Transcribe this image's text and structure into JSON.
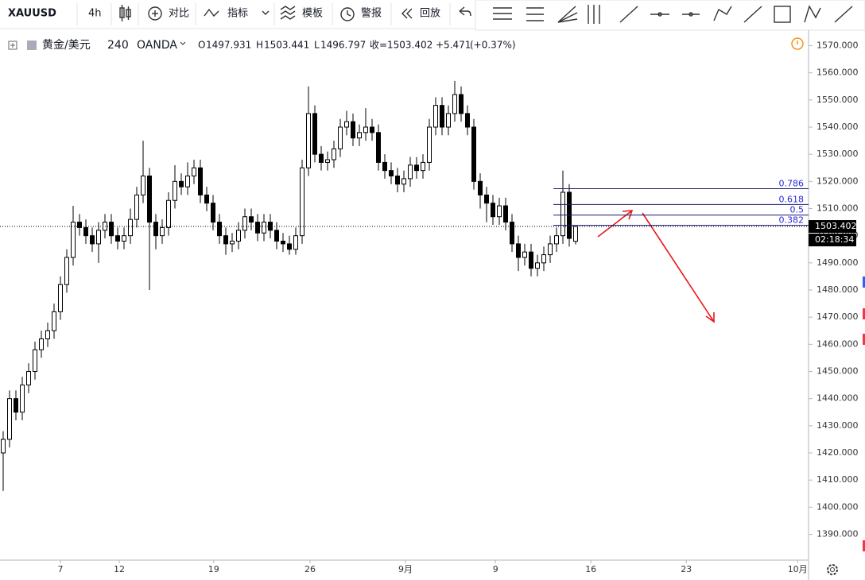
{
  "toolbar": {
    "symbol": "XAUUSD",
    "interval": "4h",
    "compare": "对比",
    "indicators": "指标",
    "templates": "模板",
    "alerts": "警报",
    "replay": "回放"
  },
  "header": {
    "name": "黄金/美元",
    "interval": "240",
    "source": "OANDA",
    "o_label": "O",
    "h_label": "H",
    "l_label": "L",
    "c_label": "收=",
    "change": "+5.471",
    "change_pct": "(+0.37%)",
    "countdown": "02:18:34"
  },
  "chart_data": {
    "type": "candlestick",
    "open": [
      1420,
      1425,
      1440,
      1435,
      1445,
      1450,
      1458,
      1462,
      1465,
      1472,
      1482,
      1492,
      1505,
      1503,
      1500,
      1497,
      1502,
      1505,
      1500,
      1498,
      1500,
      1506,
      1515,
      1522,
      1505,
      1500,
      1503,
      1513,
      1520,
      1518,
      1522,
      1525,
      1515,
      1512,
      1505,
      1500,
      1497,
      1498,
      1502,
      1507,
      1505,
      1501,
      1505,
      1502,
      1498,
      1497,
      1495,
      1500,
      1525,
      1545,
      1530,
      1527,
      1528,
      1532,
      1540,
      1542,
      1536,
      1538,
      1540,
      1538,
      1527,
      1524,
      1522,
      1519,
      1521,
      1526,
      1524,
      1527,
      1540,
      1548,
      1540,
      1545,
      1552,
      1545,
      1540,
      1520,
      1515,
      1512,
      1507,
      1511,
      1505,
      1497,
      1492,
      1494,
      1488,
      1490,
      1493,
      1497,
      1500,
      1516,
      1497.931
    ],
    "high": [
      1428,
      1443,
      1443,
      1448,
      1453,
      1461,
      1465,
      1468,
      1475,
      1485,
      1495,
      1511,
      1508,
      1506,
      1503,
      1505,
      1508,
      1508,
      1503,
      1503,
      1510,
      1518,
      1535,
      1525,
      1508,
      1506,
      1516,
      1526,
      1523,
      1527,
      1528,
      1528,
      1518,
      1515,
      1508,
      1503,
      1501,
      1505,
      1510,
      1510,
      1508,
      1508,
      1508,
      1505,
      1501,
      1500,
      1503,
      1528,
      1555,
      1548,
      1533,
      1531,
      1535,
      1543,
      1546,
      1545,
      1541,
      1547,
      1543,
      1541,
      1530,
      1527,
      1525,
      1524,
      1529,
      1529,
      1530,
      1543,
      1551,
      1551,
      1548,
      1557,
      1555,
      1548,
      1543,
      1523,
      1518,
      1515,
      1514,
      1514,
      1508,
      1500,
      1497,
      1497,
      1493,
      1496,
      1500,
      1503,
      1524,
      1519,
      1503.441
    ],
    "low": [
      1406,
      1422,
      1432,
      1432,
      1442,
      1447,
      1455,
      1459,
      1462,
      1469,
      1479,
      1489,
      1500,
      1497,
      1494,
      1490,
      1499,
      1497,
      1495,
      1495,
      1497,
      1503,
      1512,
      1480,
      1495,
      1497,
      1500,
      1510,
      1515,
      1515,
      1519,
      1512,
      1509,
      1502,
      1497,
      1493,
      1494,
      1495,
      1499,
      1502,
      1498,
      1498,
      1499,
      1495,
      1494,
      1493,
      1493,
      1497,
      1522,
      1527,
      1524,
      1524,
      1525,
      1529,
      1537,
      1533,
      1533,
      1535,
      1535,
      1524,
      1521,
      1519,
      1516,
      1516,
      1518,
      1521,
      1521,
      1524,
      1537,
      1537,
      1537,
      1542,
      1542,
      1537,
      1517,
      1510,
      1505,
      1504,
      1504,
      1502,
      1494,
      1487,
      1489,
      1485,
      1485,
      1487,
      1490,
      1494,
      1497,
      1496,
      1496.797
    ],
    "close": [
      1425,
      1440,
      1435,
      1445,
      1450,
      1458,
      1462,
      1465,
      1472,
      1482,
      1492,
      1505,
      1503,
      1500,
      1497,
      1502,
      1505,
      1500,
      1498,
      1500,
      1506,
      1515,
      1522,
      1505,
      1500,
      1503,
      1513,
      1520,
      1518,
      1522,
      1525,
      1515,
      1512,
      1505,
      1500,
      1497,
      1498,
      1502,
      1507,
      1505,
      1501,
      1505,
      1502,
      1498,
      1497,
      1495,
      1500,
      1525,
      1545,
      1530,
      1527,
      1528,
      1532,
      1540,
      1542,
      1536,
      1538,
      1540,
      1538,
      1527,
      1524,
      1522,
      1519,
      1521,
      1526,
      1524,
      1527,
      1540,
      1548,
      1540,
      1545,
      1552,
      1545,
      1540,
      1520,
      1515,
      1512,
      1507,
      1511,
      1505,
      1497,
      1492,
      1494,
      1488,
      1490,
      1493,
      1497,
      1500,
      1516,
      1499,
      1503.402
    ],
    "up_color": "#ffffff",
    "down_color": "#000000",
    "xlim": [
      0,
      127.125
    ],
    "xticks": [
      {
        "value": 9.5,
        "label": "7"
      },
      {
        "value": 18.75,
        "label": "12"
      },
      {
        "value": 33.6,
        "label": "19"
      },
      {
        "value": 48.75,
        "label": "26"
      },
      {
        "value": 63.75,
        "label": "9月"
      },
      {
        "value": 77.9,
        "label": "9"
      },
      {
        "value": 92.9,
        "label": "16"
      },
      {
        "value": 107.9,
        "label": "23"
      },
      {
        "value": 125.4,
        "label": "10月"
      }
    ],
    "ylim": [
      1380.5,
      1575.7
    ],
    "yticks": [
      {
        "value": 1390,
        "label": "1390.000"
      },
      {
        "value": 1400,
        "label": "1400.000"
      },
      {
        "value": 1410,
        "label": "1410.000"
      },
      {
        "value": 1420,
        "label": "1420.000"
      },
      {
        "value": 1430,
        "label": "1430.000"
      },
      {
        "value": 1440,
        "label": "1440.000"
      },
      {
        "value": 1450,
        "label": "1450.000"
      },
      {
        "value": 1460,
        "label": "1460.000"
      },
      {
        "value": 1470,
        "label": "1470.000"
      },
      {
        "value": 1480,
        "label": "1480.000"
      },
      {
        "value": 1490,
        "label": "1490.000"
      },
      {
        "value": 1500,
        "label": "1500.000"
      },
      {
        "value": 1510,
        "label": "1510.000"
      },
      {
        "value": 1520,
        "label": "1520.000"
      },
      {
        "value": 1530,
        "label": "1530.000"
      },
      {
        "value": 1540,
        "label": "1540.000"
      },
      {
        "value": 1550,
        "label": "1550.000"
      },
      {
        "value": 1560,
        "label": "1560.000"
      },
      {
        "value": 1570,
        "label": "1570.000"
      }
    ],
    "fib": [
      {
        "ratio": 0.786,
        "price": 1517.3
      },
      {
        "ratio": 0.618,
        "price": 1511.5
      },
      {
        "ratio": 0.5,
        "price": 1507.6
      },
      {
        "ratio": 0.382,
        "price": 1503.8
      }
    ],
    "fib_color": "#1a1a6e",
    "fib_label_color": "#2a2ad8"
  }
}
